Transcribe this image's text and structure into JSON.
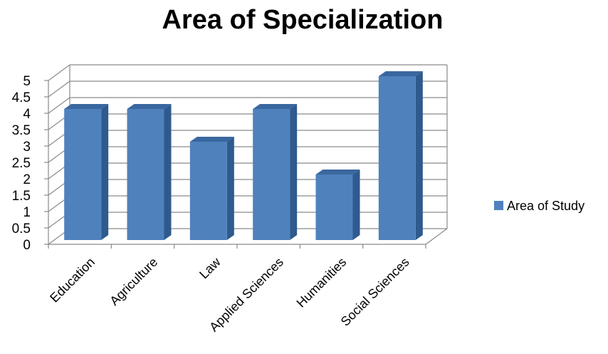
{
  "chart_data": {
    "type": "bar",
    "title": "Area of Specialization",
    "categories": [
      "Education",
      "Agriculture",
      "Law",
      "Applied Sciences",
      "Humanities",
      "Social Sciences"
    ],
    "series": [
      {
        "name": "Area of Study",
        "values": [
          4,
          4,
          3,
          4,
          2,
          5
        ]
      }
    ],
    "ylim": [
      0,
      5
    ],
    "yticks": [
      "0",
      "0.5",
      "1",
      "1.5",
      "2",
      "2.5",
      "3",
      "3.5",
      "4",
      "4.5",
      "5"
    ],
    "grid": true,
    "style": "3d",
    "legend_position": "right",
    "colors": {
      "front": "#4f81bd",
      "top": "#3a679f",
      "side": "#2e5a8e"
    }
  }
}
